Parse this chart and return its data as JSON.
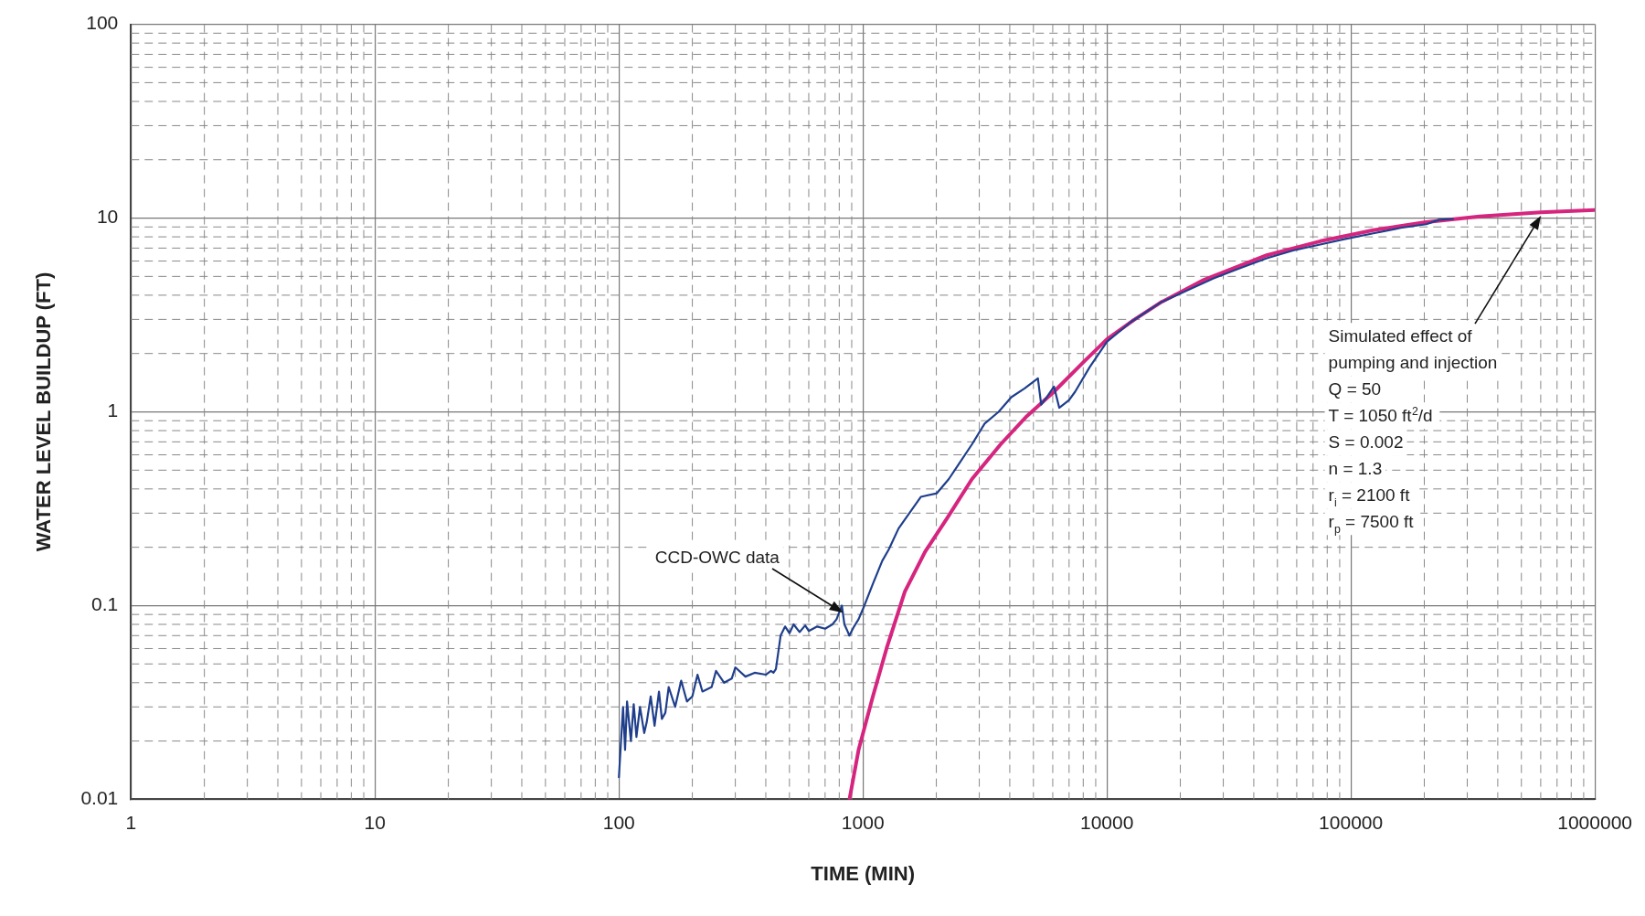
{
  "chart_data": {
    "type": "line",
    "xlabel": "TIME (MIN)",
    "ylabel": "WATER LEVEL BUILDUP (FT)",
    "log": "xy",
    "grid": true,
    "legend": false,
    "marker": "none",
    "line_style": "solid",
    "xlim": [
      1,
      1000000
    ],
    "xticks": [
      1,
      10,
      100,
      1000,
      10000,
      100000,
      1000000
    ],
    "ylim": [
      0.01,
      100
    ],
    "yticks": [
      0.01,
      0.1,
      1,
      10,
      100
    ],
    "series": [
      {
        "color": "#1f3f8c",
        "x": [
          100,
          104,
          106,
          108,
          112,
          115,
          118,
          122,
          127,
          130,
          135,
          140,
          146,
          150,
          155,
          160,
          170,
          180,
          190,
          200,
          210,
          220,
          240,
          250,
          270,
          290,
          300,
          330,
          360,
          400,
          420,
          430,
          440,
          460,
          480,
          500,
          520,
          550,
          580,
          600,
          650,
          700,
          750,
          780,
          820,
          840,
          860,
          880,
          920,
          960,
          1014,
          1100,
          1200,
          1277,
          1400,
          1550,
          1727,
          2010,
          2250,
          2455,
          2800,
          3155,
          3600,
          4057,
          4600,
          5215,
          5380,
          5700,
          6070,
          6380,
          7000,
          7410,
          8500,
          10000,
          12500,
          16560,
          21000,
          27370,
          35000,
          45200,
          58000,
          74800,
          95000,
          123600,
          160000,
          204000,
          230000,
          262000
        ],
        "values": [
          0.013,
          0.03,
          0.018,
          0.032,
          0.02,
          0.031,
          0.021,
          0.03,
          0.022,
          0.025,
          0.034,
          0.024,
          0.036,
          0.026,
          0.028,
          0.038,
          0.03,
          0.041,
          0.032,
          0.034,
          0.044,
          0.036,
          0.038,
          0.046,
          0.04,
          0.042,
          0.048,
          0.043,
          0.045,
          0.044,
          0.046,
          0.045,
          0.047,
          0.07,
          0.078,
          0.072,
          0.08,
          0.073,
          0.079,
          0.074,
          0.078,
          0.076,
          0.08,
          0.085,
          0.1,
          0.08,
          0.075,
          0.07,
          0.078,
          0.085,
          0.1,
          0.13,
          0.17,
          0.195,
          0.25,
          0.3,
          0.364,
          0.38,
          0.45,
          0.53,
          0.68,
          0.87,
          1.0,
          1.19,
          1.32,
          1.49,
          1.09,
          1.2,
          1.35,
          1.05,
          1.15,
          1.27,
          1.7,
          2.3,
          2.9,
          3.66,
          4.2,
          4.88,
          5.5,
          6.2,
          6.8,
          7.3,
          7.8,
          8.34,
          8.9,
          9.3,
          9.8,
          9.9
        ]
      },
      {
        "color": "#d6257f",
        "x": [
          881,
          960,
          1099,
          1250,
          1486,
          1800,
          2220,
          2800,
          3670,
          4700,
          6070,
          8000,
          10000,
          13000,
          16560,
          25000,
          45200,
          75000,
          123600,
          200000,
          337000,
          600000,
          1000000
        ],
        "values": [
          0.01,
          0.018,
          0.034,
          0.06,
          0.118,
          0.19,
          0.284,
          0.45,
          0.68,
          0.95,
          1.27,
          1.8,
          2.37,
          3.0,
          3.66,
          4.8,
          6.43,
          7.6,
          8.66,
          9.5,
          10.2,
          10.7,
          11.0
        ]
      }
    ],
    "annotations": [
      "CCD-OWC data",
      "Simulated effect of",
      "pumping and injection",
      "Q = 50",
      "T = 1050 ft$^{2}$/d",
      "S = 0.002",
      "n = 1.3",
      "r$_{i}$ = 2100 ft",
      "r$_{p}$ = 7500 ft"
    ]
  }
}
